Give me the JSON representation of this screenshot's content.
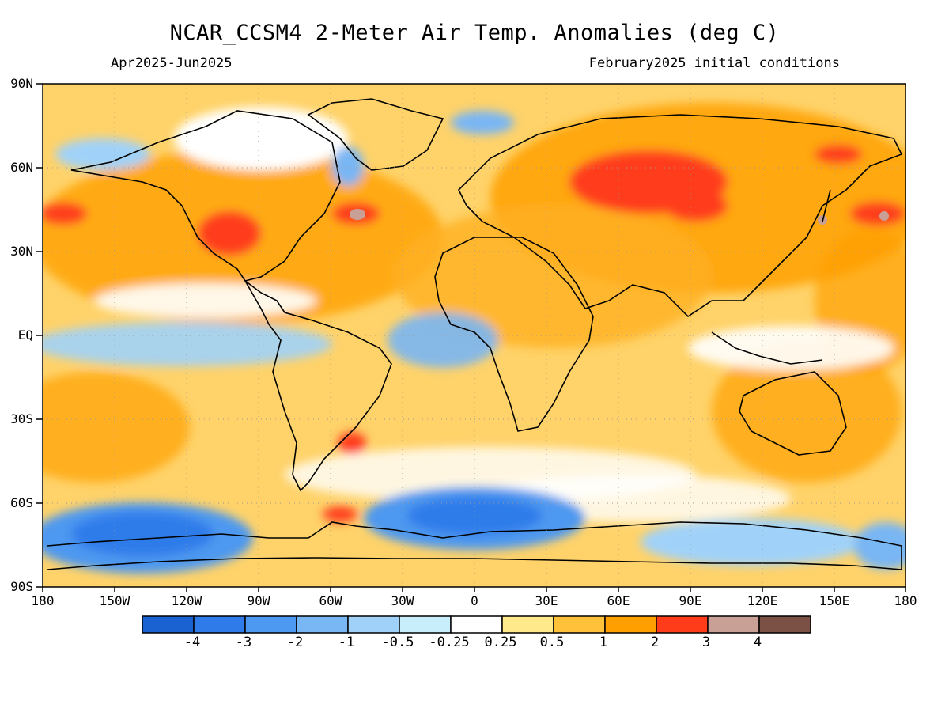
{
  "title": "NCAR_CCSM4 2-Meter Air Temp. Anomalies (deg C)",
  "subtitle_left": "Apr2025-Jun2025",
  "subtitle_right": "February2025 initial conditions",
  "lat_labels": [
    "90N",
    "60N",
    "30N",
    "EQ",
    "30S",
    "60S",
    "90S"
  ],
  "lon_labels": [
    "180",
    "150W",
    "120W",
    "90W",
    "60W",
    "30W",
    "0",
    "30E",
    "60E",
    "90E",
    "120E",
    "150E",
    "180"
  ],
  "colorbar": {
    "labels": [
      "-4",
      "-3",
      "-2",
      "-1",
      "-0.5",
      "-0.25",
      "0.25",
      "0.5",
      "1",
      "2",
      "3",
      "4"
    ],
    "colors": [
      "#1a62d2",
      "#2f7bea",
      "#4d98f0",
      "#79b6f4",
      "#a0d2f9",
      "#c8eefb",
      "#ffffff",
      "#ffe98a",
      "#ffc13a",
      "#ffa000",
      "#ff3c1a",
      "#c8a096",
      "#7a5144"
    ]
  }
}
